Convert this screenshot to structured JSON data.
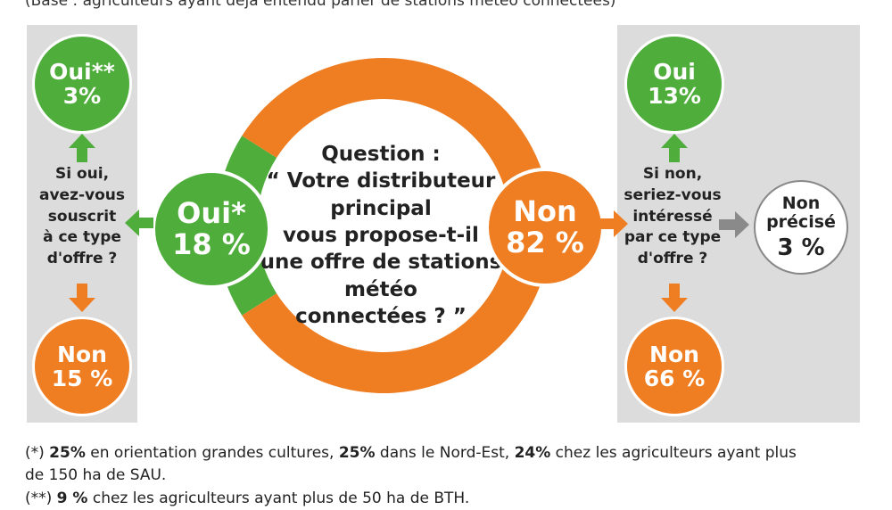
{
  "header": {
    "base": "(Base : agriculteurs ayant déjà entendu parler de stations météo connectées)"
  },
  "question": {
    "lines": [
      "Question :",
      "“ Votre distributeur",
      "principal",
      "vous propose-t-il",
      "une offre de stations",
      "météo",
      "connectées ? ”"
    ]
  },
  "left": {
    "main_label": "Oui*",
    "main_value": "18 %",
    "sub_question_lines": [
      "Si oui,",
      "avez-vous",
      "souscrit",
      "à ce type",
      "d'offre ?"
    ],
    "yes_label": "Oui**",
    "yes_value": "3%",
    "no_label": "Non",
    "no_value": "15 %"
  },
  "right": {
    "main_label": "Non",
    "main_value": "82 %",
    "sub_question_lines": [
      "Si non,",
      "seriez-vous",
      "intéressé",
      "par ce type",
      "d'offre ?"
    ],
    "yes_label": "Oui",
    "yes_value": "13%",
    "no_label": "Non",
    "no_value": "66 %",
    "unspecified_label_1": "Non",
    "unspecified_label_2": "précisé",
    "unspecified_value": "3 %"
  },
  "footnotes": {
    "note1_prefix": "(*) ",
    "note1_b1": "25%",
    "note1_t1": " en orientation grandes cultures, ",
    "note1_b2": "25%",
    "note1_t2": " dans le Nord-Est, ",
    "note1_b3": "24%",
    "note1_t3": " chez  les agriculteurs ayant plus",
    "note1_line2": "de 150 ha de SAU.",
    "note2_prefix": "(**) ",
    "note2_b1": "9 %",
    "note2_t1": " chez les agriculteurs ayant plus de 50 ha de BTH."
  },
  "colors": {
    "green": "#4fae3b",
    "orange": "#ef7d22",
    "grey_arrow": "#8a8a8a",
    "panel": "#dcdcdc"
  },
  "chart_data": {
    "type": "pie",
    "categories": [
      "Oui*",
      "Non"
    ],
    "values": [
      18,
      82
    ],
    "colors": [
      "#4fae3b",
      "#ef7d22"
    ],
    "sub_breakdowns": [
      {
        "parent": "Oui*",
        "categories": [
          "Oui**",
          "Non"
        ],
        "values": [
          3,
          15
        ]
      },
      {
        "parent": "Non",
        "categories": [
          "Oui",
          "Non",
          "Non précisé"
        ],
        "values": [
          13,
          66,
          3
        ]
      }
    ]
  }
}
